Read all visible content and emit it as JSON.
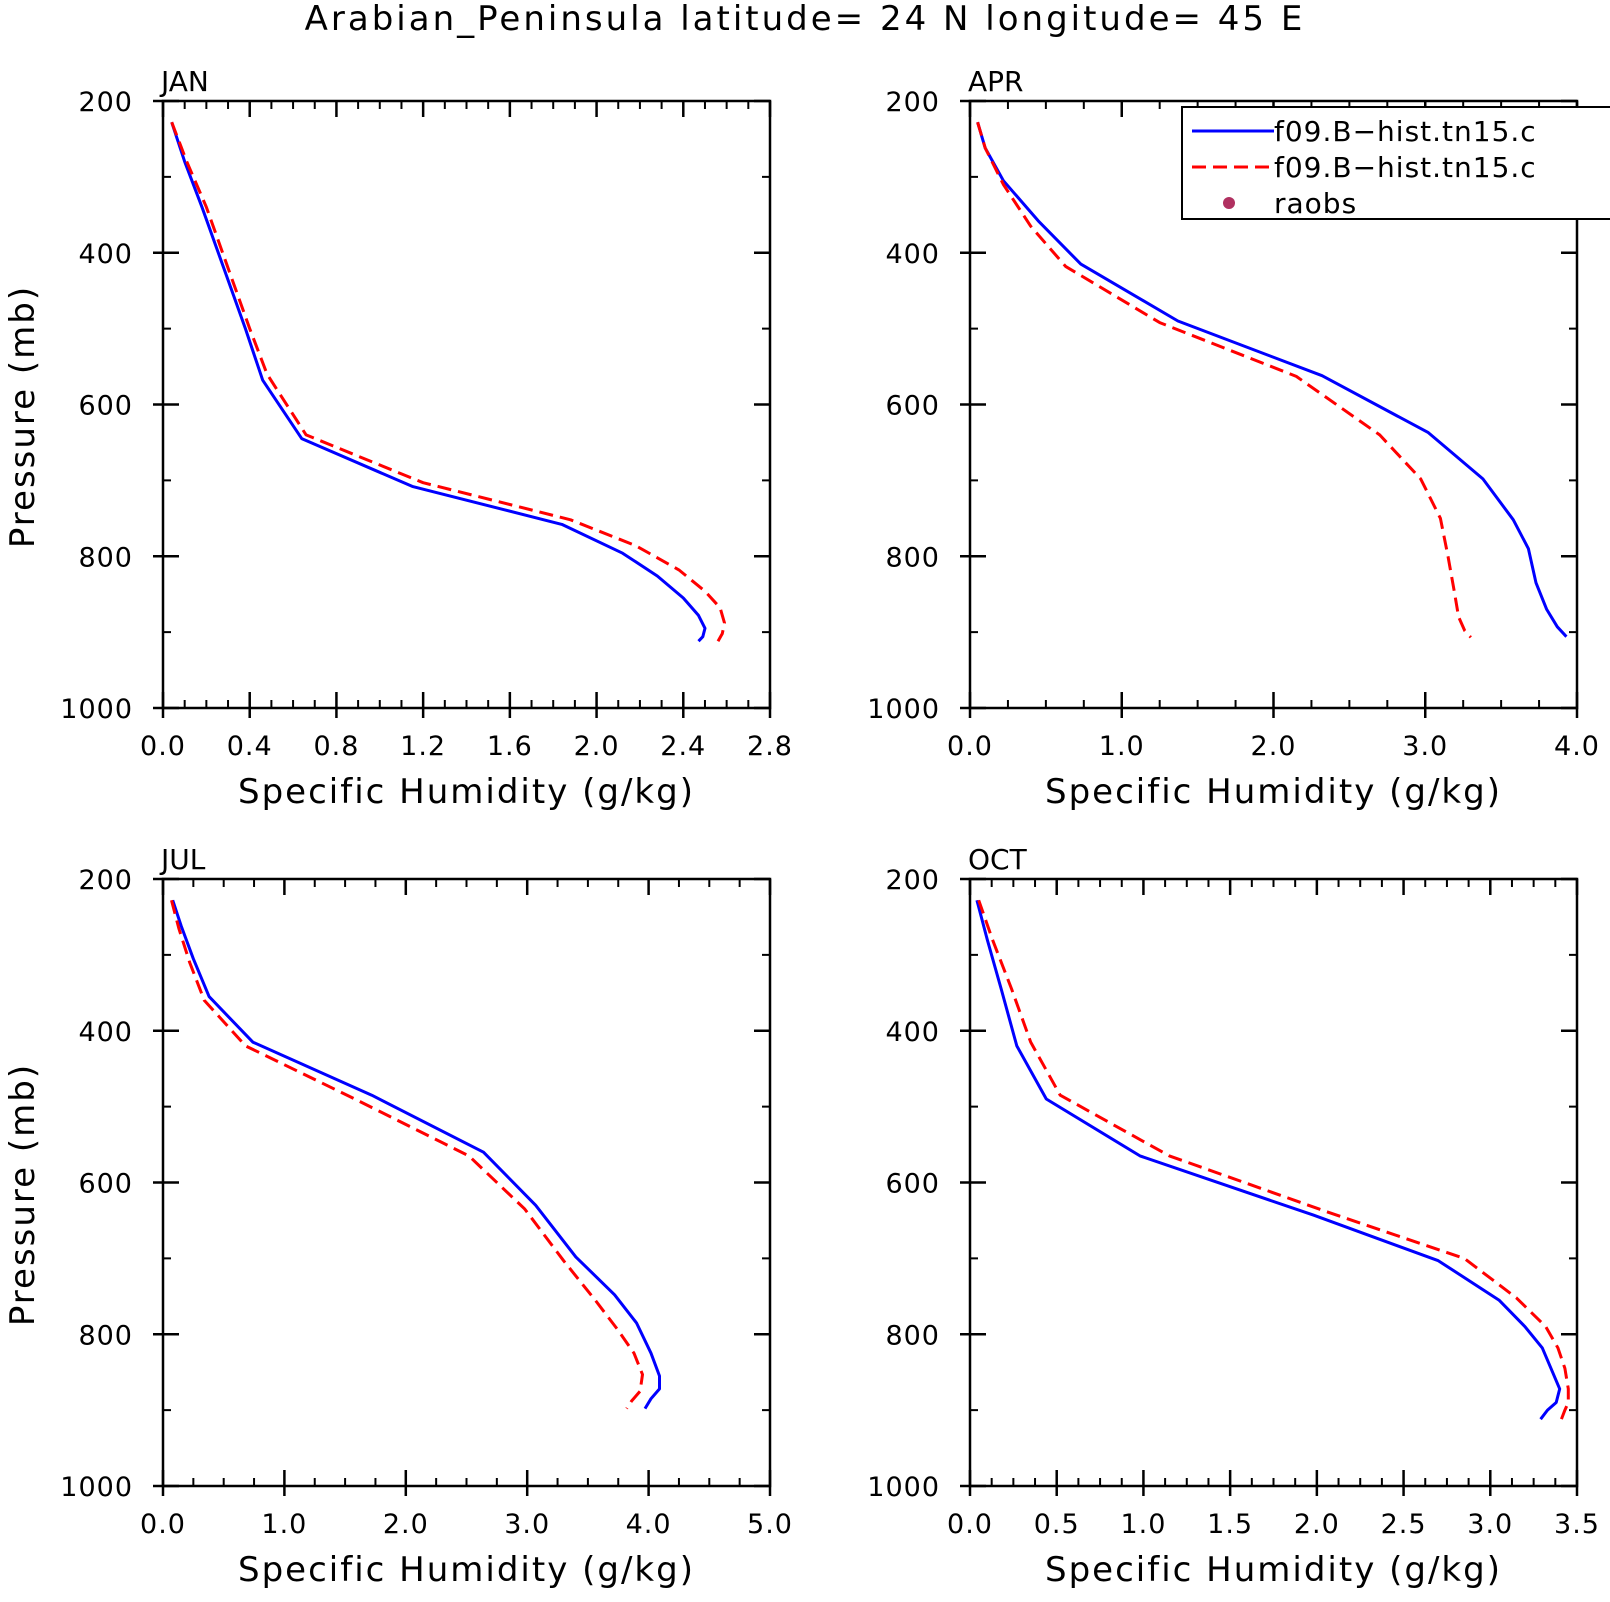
{
  "title": "Arabian_Peninsula  latitude= 24 N longitude= 45 E",
  "colors": {
    "model1": "#0000ff",
    "model2": "#ff0000",
    "raobs": "#b03060",
    "axis": "#000000"
  },
  "legend": {
    "items": [
      {
        "label": "f09.B−hist.tn15.c",
        "style": "solid",
        "color": "#0000ff"
      },
      {
        "label": "f09.B−hist.tn15.c",
        "style": "dashed",
        "color": "#ff0000"
      },
      {
        "label": "raobs",
        "style": "dot",
        "color": "#b03060"
      }
    ]
  },
  "chart_data": [
    {
      "type": "line",
      "title": "JAN",
      "xlabel": "Specific Humidity (g/kg)",
      "ylabel": "Pressure (mb)",
      "xlim": [
        0,
        2.8
      ],
      "ylim": [
        200,
        1000
      ],
      "y_inverted": true,
      "xticks": [
        "0.0",
        "0.4",
        "0.8",
        "1.2",
        "1.6",
        "2.0",
        "2.4",
        "2.8"
      ],
      "yticks": [
        "200",
        "400",
        "600",
        "800",
        "1000"
      ],
      "series": [
        {
          "style": "solid",
          "color": "#0000ff",
          "points": [
            [
              0.04,
              228
            ],
            [
              0.1,
              280
            ],
            [
              0.18,
              340
            ],
            [
              0.28,
              420
            ],
            [
              0.38,
              500
            ],
            [
              0.46,
              568
            ],
            [
              0.64,
              645
            ],
            [
              1.15,
              708
            ],
            [
              1.84,
              758
            ],
            [
              2.12,
              796
            ],
            [
              2.28,
              826
            ],
            [
              2.4,
              855
            ],
            [
              2.47,
              878
            ],
            [
              2.5,
              895
            ],
            [
              2.49,
              906
            ],
            [
              2.47,
              912
            ]
          ]
        },
        {
          "style": "dashed",
          "color": "#ff0000",
          "points": [
            [
              0.04,
              228
            ],
            [
              0.11,
              280
            ],
            [
              0.2,
              340
            ],
            [
              0.3,
              420
            ],
            [
              0.4,
              500
            ],
            [
              0.48,
              560
            ],
            [
              0.66,
              640
            ],
            [
              1.2,
              703
            ],
            [
              1.88,
              752
            ],
            [
              2.18,
              786
            ],
            [
              2.38,
              818
            ],
            [
              2.5,
              846
            ],
            [
              2.57,
              868
            ],
            [
              2.59,
              888
            ],
            [
              2.58,
              902
            ],
            [
              2.56,
              912
            ]
          ]
        }
      ]
    },
    {
      "type": "line",
      "title": "APR",
      "xlabel": "Specific Humidity (g/kg)",
      "ylabel": "",
      "xlim": [
        0,
        4.0
      ],
      "ylim": [
        200,
        1000
      ],
      "y_inverted": true,
      "xticks": [
        "0.0",
        "1.0",
        "2.0",
        "3.0",
        "4.0"
      ],
      "yticks": [
        "200",
        "400",
        "600",
        "800",
        "1000"
      ],
      "show_legend": true,
      "series": [
        {
          "style": "solid",
          "color": "#0000ff",
          "points": [
            [
              0.05,
              228
            ],
            [
              0.1,
              262
            ],
            [
              0.22,
              305
            ],
            [
              0.45,
              358
            ],
            [
              0.73,
              415
            ],
            [
              1.37,
              490
            ],
            [
              2.32,
              562
            ],
            [
              3.02,
              637
            ],
            [
              3.38,
              698
            ],
            [
              3.58,
              752
            ],
            [
              3.68,
              790
            ],
            [
              3.73,
              835
            ],
            [
              3.8,
              870
            ],
            [
              3.87,
              893
            ],
            [
              3.93,
              906
            ]
          ]
        },
        {
          "style": "dashed",
          "color": "#ff0000",
          "points": [
            [
              0.05,
              228
            ],
            [
              0.1,
              262
            ],
            [
              0.22,
              310
            ],
            [
              0.4,
              365
            ],
            [
              0.63,
              418
            ],
            [
              1.25,
              492
            ],
            [
              2.15,
              563
            ],
            [
              2.7,
              640
            ],
            [
              2.97,
              698
            ],
            [
              3.1,
              750
            ],
            [
              3.15,
              800
            ],
            [
              3.19,
              845
            ],
            [
              3.22,
              880
            ],
            [
              3.26,
              898
            ],
            [
              3.3,
              907
            ]
          ]
        }
      ]
    },
    {
      "type": "line",
      "title": "JUL",
      "xlabel": "Specific Humidity (g/kg)",
      "ylabel": "Pressure (mb)",
      "xlim": [
        0,
        5.0
      ],
      "ylim": [
        200,
        1000
      ],
      "y_inverted": true,
      "xticks": [
        "0.0",
        "1.0",
        "2.0",
        "3.0",
        "4.0",
        "5.0"
      ],
      "yticks": [
        "200",
        "400",
        "600",
        "800",
        "1000"
      ],
      "series": [
        {
          "style": "solid",
          "color": "#0000ff",
          "points": [
            [
              0.08,
              228
            ],
            [
              0.15,
              262
            ],
            [
              0.25,
              305
            ],
            [
              0.38,
              355
            ],
            [
              0.74,
              415
            ],
            [
              1.72,
              485
            ],
            [
              2.64,
              560
            ],
            [
              3.07,
              630
            ],
            [
              3.4,
              698
            ],
            [
              3.72,
              748
            ],
            [
              3.9,
              785
            ],
            [
              4.02,
              825
            ],
            [
              4.09,
              855
            ],
            [
              4.09,
              872
            ],
            [
              4.02,
              885
            ],
            [
              3.97,
              898
            ]
          ]
        },
        {
          "style": "dashed",
          "color": "#ff0000",
          "points": [
            [
              0.07,
              228
            ],
            [
              0.13,
              265
            ],
            [
              0.22,
              310
            ],
            [
              0.34,
              360
            ],
            [
              0.68,
              420
            ],
            [
              1.58,
              490
            ],
            [
              2.52,
              565
            ],
            [
              2.98,
              635
            ],
            [
              3.3,
              703
            ],
            [
              3.56,
              755
            ],
            [
              3.75,
              795
            ],
            [
              3.88,
              825
            ],
            [
              3.95,
              853
            ],
            [
              3.93,
              875
            ],
            [
              3.86,
              888
            ],
            [
              3.82,
              898
            ]
          ]
        }
      ]
    },
    {
      "type": "line",
      "title": "OCT",
      "xlabel": "Specific Humidity (g/kg)",
      "ylabel": "",
      "xlim": [
        0,
        3.5
      ],
      "ylim": [
        200,
        1000
      ],
      "y_inverted": true,
      "xticks": [
        "0.0",
        "0.5",
        "1.0",
        "1.5",
        "2.0",
        "2.5",
        "3.0",
        "3.5"
      ],
      "yticks": [
        "200",
        "400",
        "600",
        "800",
        "1000"
      ],
      "series": [
        {
          "style": "solid",
          "color": "#0000ff",
          "points": [
            [
              0.04,
              228
            ],
            [
              0.1,
              280
            ],
            [
              0.18,
              345
            ],
            [
              0.27,
              420
            ],
            [
              0.44,
              490
            ],
            [
              0.98,
              565
            ],
            [
              1.98,
              643
            ],
            [
              2.7,
              703
            ],
            [
              3.05,
              755
            ],
            [
              3.2,
              790
            ],
            [
              3.3,
              818
            ],
            [
              3.35,
              845
            ],
            [
              3.4,
              872
            ],
            [
              3.38,
              890
            ],
            [
              3.33,
              900
            ],
            [
              3.29,
              912
            ]
          ]
        },
        {
          "style": "dashed",
          "color": "#ff0000",
          "points": [
            [
              0.05,
              228
            ],
            [
              0.13,
              280
            ],
            [
              0.24,
              345
            ],
            [
              0.35,
              415
            ],
            [
              0.52,
              485
            ],
            [
              1.15,
              565
            ],
            [
              2.05,
              638
            ],
            [
              2.85,
              700
            ],
            [
              3.15,
              752
            ],
            [
              3.32,
              790
            ],
            [
              3.39,
              818
            ],
            [
              3.43,
              845
            ],
            [
              3.45,
              872
            ],
            [
              3.45,
              890
            ],
            [
              3.43,
              900
            ],
            [
              3.41,
              912
            ]
          ]
        }
      ]
    }
  ]
}
